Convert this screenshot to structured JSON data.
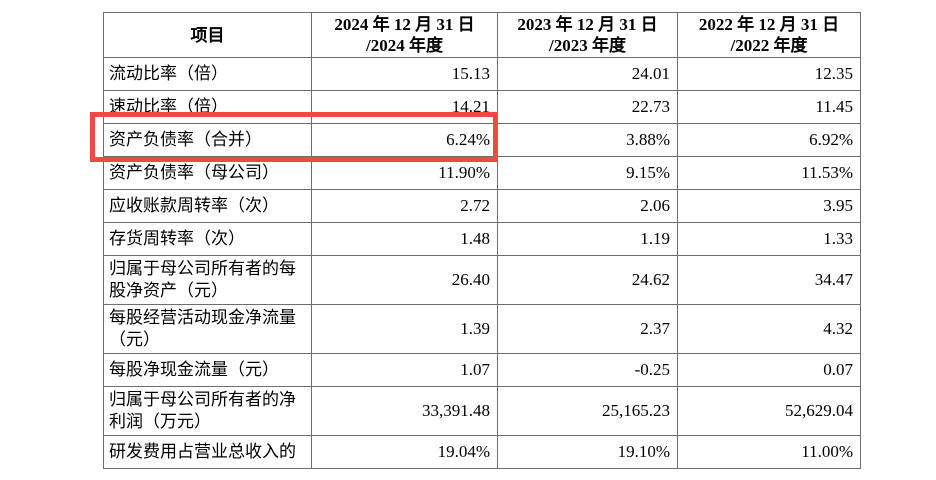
{
  "page": {
    "background": "#ffffff",
    "text_color": "#000000",
    "table_border_color": "#6e6e6e"
  },
  "highlight": {
    "color": "#f04843",
    "row_label": "资产负债率（合并）",
    "highlighted_value": "6.24%"
  },
  "table": {
    "header": {
      "item_label": "项目",
      "periods": [
        {
          "line1": "2024 年 12 月 31 日",
          "line2": "/2024 年度"
        },
        {
          "line1": "2023 年 12 月 31 日",
          "line2": "/2023 年度"
        },
        {
          "line1": "2022 年 12 月 31 日",
          "line2": "/2022 年度"
        }
      ]
    },
    "rows": [
      {
        "label": "流动比率（倍）",
        "values": [
          "15.13",
          "24.01",
          "12.35"
        ],
        "highlighted": false
      },
      {
        "label": "速动比率（倍）",
        "values": [
          "14.21",
          "22.73",
          "11.45"
        ],
        "highlighted": false
      },
      {
        "label": "资产负债率（合并）",
        "values": [
          "6.24%",
          "3.88%",
          "6.92%"
        ],
        "highlighted": true
      },
      {
        "label": "资产负债率（母公司）",
        "values": [
          "11.90%",
          "9.15%",
          "11.53%"
        ],
        "highlighted": false
      },
      {
        "label": "应收账款周转率（次）",
        "values": [
          "2.72",
          "2.06",
          "3.95"
        ],
        "highlighted": false
      },
      {
        "label": "存货周转率（次）",
        "values": [
          "1.48",
          "1.19",
          "1.33"
        ],
        "highlighted": false
      },
      {
        "label": "归属于母公司所有者的每股净资产（元）",
        "values": [
          "26.40",
          "24.62",
          "34.47"
        ],
        "highlighted": false
      },
      {
        "label": "每股经营活动现金净流量（元）",
        "values": [
          "1.39",
          "2.37",
          "4.32"
        ],
        "highlighted": false
      },
      {
        "label": "每股净现金流量（元）",
        "values": [
          "1.07",
          "-0.25",
          "0.07"
        ],
        "highlighted": false
      },
      {
        "label": "归属于母公司所有者的净利润（万元）",
        "values": [
          "33,391.48",
          "25,165.23",
          "52,629.04"
        ],
        "highlighted": false
      },
      {
        "label": "研发费用占营业总收入的",
        "values": [
          "19.04%",
          "19.10%",
          "11.00%"
        ],
        "highlighted": false
      }
    ]
  }
}
